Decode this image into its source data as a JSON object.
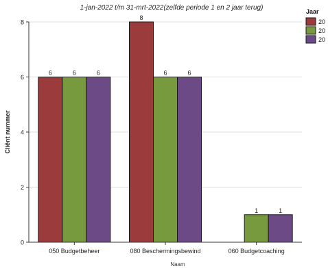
{
  "chart_data": {
    "type": "bar",
    "subtitle": "1-jan-2022 t/m 31-mrt-2022(zelfde periode 1 en 2 jaar terug)",
    "xlabel": "Naam",
    "ylabel": "Cliënt nummer",
    "categories": [
      "050 Budgetbeheer",
      "080 Beschermingsbewind",
      "060 Budgetcoaching"
    ],
    "ylim": [
      0,
      8
    ],
    "yticks": [
      0,
      2,
      4,
      6,
      8
    ],
    "grid": true,
    "legend_position": "top-right",
    "legend_title": "Jaar",
    "series": [
      {
        "name": "20",
        "color": "#9c3b3b",
        "values": [
          6,
          8,
          null
        ],
        "labels": [
          "6",
          "8",
          ""
        ]
      },
      {
        "name": "20",
        "color": "#789a3e",
        "values": [
          6,
          6,
          1
        ],
        "labels": [
          "6",
          "6",
          "1"
        ]
      },
      {
        "name": "20",
        "color": "#6c4a86",
        "values": [
          6,
          6,
          1
        ],
        "labels": [
          "6",
          "6",
          "1"
        ]
      }
    ]
  }
}
